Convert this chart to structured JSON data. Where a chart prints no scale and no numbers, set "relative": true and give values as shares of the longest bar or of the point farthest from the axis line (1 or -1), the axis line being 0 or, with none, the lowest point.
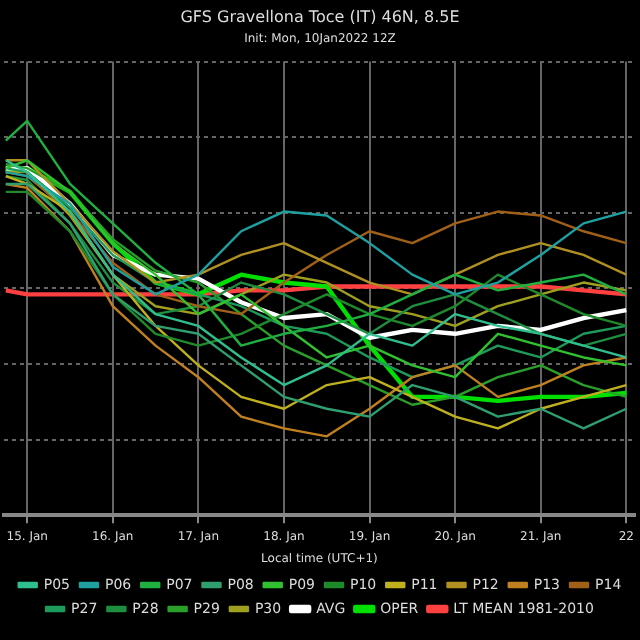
{
  "chart_data": {
    "type": "line",
    "title": "GFS Gravellona Toce (IT) 46N, 8.5E",
    "subtitle": "Init: Mon, 10Jan2022 12Z",
    "xlabel": "Local time (UTC+1)",
    "relative": true,
    "grid": true,
    "legend": "bottom",
    "marker": "none",
    "xlim": [
      "2022-01-14T17:30",
      "2022-01-22T02:24"
    ],
    "xticks": [
      {
        "value": "2022-01-15",
        "label": "15. Jan"
      },
      {
        "value": "2022-01-16",
        "label": "16. Jan"
      },
      {
        "value": "2022-01-17",
        "label": "17. Jan"
      },
      {
        "value": "2022-01-18",
        "label": "18. Jan"
      },
      {
        "value": "2022-01-19",
        "label": "19. Jan"
      },
      {
        "value": "2022-01-20",
        "label": "20. Jan"
      },
      {
        "value": "2022-01-21",
        "label": "21. Jan"
      },
      {
        "value": "2022-01-22",
        "label": "22"
      }
    ],
    "x": [
      "2022-01-14T18:00",
      "2022-01-15",
      "2022-01-15T12:00",
      "2022-01-16",
      "2022-01-16T12:00",
      "2022-01-17",
      "2022-01-17T12:00",
      "2022-01-18",
      "2022-01-18T12:00",
      "2022-01-19",
      "2022-01-19T12:00",
      "2022-01-20",
      "2022-01-20T12:00",
      "2022-01-21",
      "2022-01-21T12:00",
      "2022-01-22"
    ],
    "series": [
      {
        "name": "P05",
        "color": "#2fbf8f",
        "values": [
          0.9,
          0.87,
          0.77,
          0.61,
          0.51,
          0.48,
          0.4,
          0.33,
          0.38,
          0.46,
          0.43,
          0.51,
          0.48,
          0.46,
          0.43,
          0.4
        ]
      },
      {
        "name": "P06",
        "color": "#1fa0a0",
        "values": [
          0.87,
          0.86,
          0.79,
          0.63,
          0.56,
          0.61,
          0.72,
          0.77,
          0.76,
          0.69,
          0.61,
          0.56,
          0.59,
          0.66,
          0.74,
          0.77
        ]
      },
      {
        "name": "P07",
        "color": "#20b040",
        "values": [
          0.95,
          1.0,
          0.84,
          0.74,
          0.64,
          0.56,
          0.43,
          0.46,
          0.48,
          0.51,
          0.56,
          0.61,
          0.57,
          0.59,
          0.61,
          0.56
        ]
      },
      {
        "name": "P08",
        "color": "#2f9f6f",
        "values": [
          0.84,
          0.84,
          0.74,
          0.56,
          0.48,
          0.46,
          0.38,
          0.3,
          0.27,
          0.25,
          0.33,
          0.3,
          0.25,
          0.27,
          0.22,
          0.27
        ]
      },
      {
        "name": "P09",
        "color": "#30c030",
        "values": [
          0.88,
          0.9,
          0.82,
          0.69,
          0.61,
          0.51,
          0.56,
          0.48,
          0.4,
          0.43,
          0.38,
          0.35,
          0.46,
          0.43,
          0.4,
          0.38
        ]
      },
      {
        "name": "P10",
        "color": "#1e8a2a",
        "values": [
          0.82,
          0.82,
          0.72,
          0.56,
          0.46,
          0.43,
          0.46,
          0.51,
          0.56,
          0.51,
          0.48,
          0.53,
          0.61,
          0.56,
          0.51,
          0.48
        ]
      },
      {
        "name": "P11",
        "color": "#c0b020",
        "values": [
          0.86,
          0.84,
          0.77,
          0.61,
          0.48,
          0.38,
          0.3,
          0.27,
          0.33,
          0.35,
          0.3,
          0.25,
          0.22,
          0.27,
          0.3,
          0.33
        ]
      },
      {
        "name": "P12",
        "color": "#b09020",
        "values": [
          0.9,
          0.9,
          0.79,
          0.67,
          0.59,
          0.61,
          0.66,
          0.69,
          0.64,
          0.59,
          0.56,
          0.61,
          0.66,
          0.69,
          0.66,
          0.61
        ]
      },
      {
        "name": "P13",
        "color": "#c08020",
        "values": [
          0.84,
          0.83,
          0.72,
          0.53,
          0.43,
          0.35,
          0.25,
          0.22,
          0.2,
          0.27,
          0.35,
          0.38,
          0.3,
          0.33,
          0.38,
          0.4
        ]
      },
      {
        "name": "P14",
        "color": "#a06018",
        "values": [
          0.87,
          0.86,
          0.77,
          0.64,
          0.56,
          0.53,
          0.51,
          0.59,
          0.66,
          0.72,
          0.69,
          0.74,
          0.77,
          0.76,
          0.72,
          0.69
        ]
      },
      {
        "name": "P27",
        "color": "#1e9a5a",
        "values": [
          0.88,
          0.87,
          0.78,
          0.66,
          0.59,
          0.56,
          0.53,
          0.48,
          0.46,
          0.4,
          0.35,
          0.38,
          0.43,
          0.4,
          0.46,
          0.48
        ]
      },
      {
        "name": "P28",
        "color": "#1e8e40",
        "values": [
          0.86,
          0.85,
          0.74,
          0.59,
          0.51,
          0.53,
          0.59,
          0.56,
          0.51,
          0.46,
          0.53,
          0.56,
          0.51,
          0.46,
          0.43,
          0.46
        ]
      },
      {
        "name": "P29",
        "color": "#2aa02a",
        "values": [
          0.89,
          0.88,
          0.82,
          0.7,
          0.62,
          0.59,
          0.51,
          0.43,
          0.38,
          0.33,
          0.28,
          0.3,
          0.35,
          0.38,
          0.33,
          0.3
        ]
      },
      {
        "name": "P30",
        "color": "#a0a020",
        "values": [
          0.87,
          0.87,
          0.76,
          0.61,
          0.53,
          0.51,
          0.56,
          0.61,
          0.59,
          0.53,
          0.51,
          0.48,
          0.53,
          0.56,
          0.59,
          0.57
        ]
      },
      {
        "name": "AVG",
        "color": "#ffffff",
        "values": [
          0.88,
          0.88,
          0.79,
          0.66,
          0.61,
          0.6,
          0.54,
          0.5,
          0.51,
          0.45,
          0.47,
          0.46,
          0.48,
          0.47,
          0.5,
          0.52
        ]
      },
      {
        "name": "OPER",
        "color": "#00e000",
        "values": [
          0.87,
          0.88,
          0.82,
          0.69,
          0.59,
          0.56,
          0.61,
          0.59,
          0.58,
          0.43,
          0.3,
          0.3,
          0.29,
          0.3,
          0.3,
          0.31
        ]
      },
      {
        "name": "LT MEAN 1981-2010",
        "color": "#ff4040",
        "values": [
          0.57,
          0.56,
          0.56,
          0.56,
          0.56,
          0.56,
          0.57,
          0.57,
          0.58,
          0.58,
          0.58,
          0.58,
          0.58,
          0.58,
          0.57,
          0.56
        ]
      }
    ]
  }
}
